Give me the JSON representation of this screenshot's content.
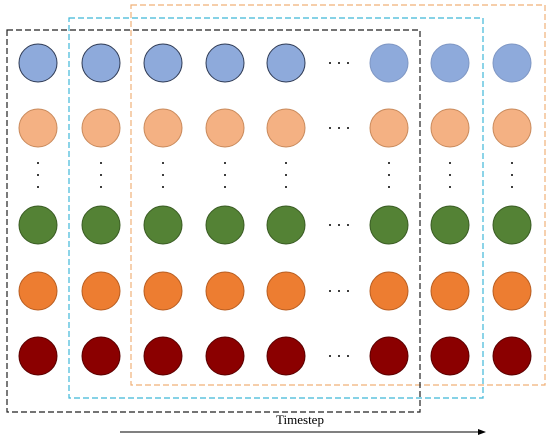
{
  "axis_label": "Timestep"
}
